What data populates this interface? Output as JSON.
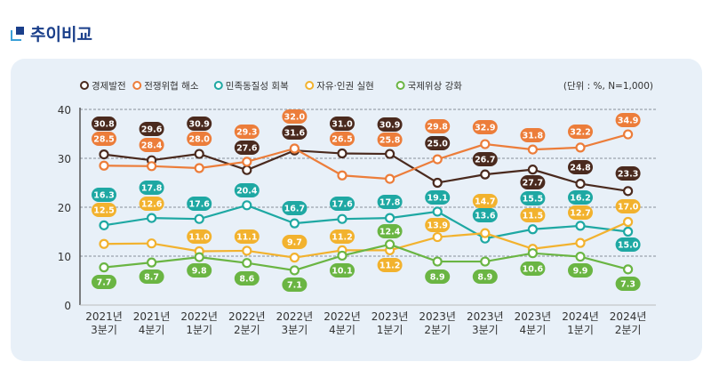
{
  "page_title": "추이비교",
  "chart_data": {
    "type": "line",
    "unit_note": "(단위 : %, N=1,000)",
    "categories": [
      [
        "2021년",
        "3분기"
      ],
      [
        "2021년",
        "4분기"
      ],
      [
        "2022년",
        "1분기"
      ],
      [
        "2022년",
        "2분기"
      ],
      [
        "2022년",
        "3분기"
      ],
      [
        "2022년",
        "4분기"
      ],
      [
        "2023년",
        "1분기"
      ],
      [
        "2023년",
        "2분기"
      ],
      [
        "2023년",
        "3분기"
      ],
      [
        "2023년",
        "4분기"
      ],
      [
        "2024년",
        "1분기"
      ],
      [
        "2024년",
        "2분기"
      ]
    ],
    "ylim": [
      0,
      40
    ],
    "yticks": [
      0,
      10,
      20,
      30,
      40
    ],
    "grid": true,
    "legend": "top",
    "series": [
      {
        "name": "경제발전",
        "color": "#4a2a1e",
        "values": [
          30.8,
          29.6,
          30.9,
          27.6,
          31.6,
          31.0,
          30.9,
          25.0,
          26.7,
          27.7,
          24.8,
          23.3
        ]
      },
      {
        "name": "전쟁위협 해소",
        "color": "#ec7d3a",
        "values": [
          28.5,
          28.4,
          28.0,
          29.3,
          32.0,
          26.5,
          25.8,
          29.8,
          32.9,
          31.8,
          32.2,
          34.9
        ]
      },
      {
        "name": "민족동질성 회복",
        "color": "#1ea8a3",
        "values": [
          16.3,
          17.8,
          17.6,
          20.4,
          16.7,
          17.6,
          17.8,
          19.1,
          13.6,
          15.5,
          16.2,
          15.0
        ]
      },
      {
        "name": "자유·인권 실현",
        "color": "#f2b22e",
        "values": [
          12.5,
          12.6,
          11.0,
          11.1,
          9.7,
          11.2,
          11.2,
          13.9,
          14.7,
          11.5,
          12.7,
          17.0
        ]
      },
      {
        "name": "국제위상 강화",
        "color": "#6ab543",
        "values": [
          7.7,
          8.7,
          9.8,
          8.6,
          7.1,
          10.1,
          12.4,
          8.9,
          8.9,
          10.6,
          9.9,
          7.3
        ]
      }
    ]
  }
}
